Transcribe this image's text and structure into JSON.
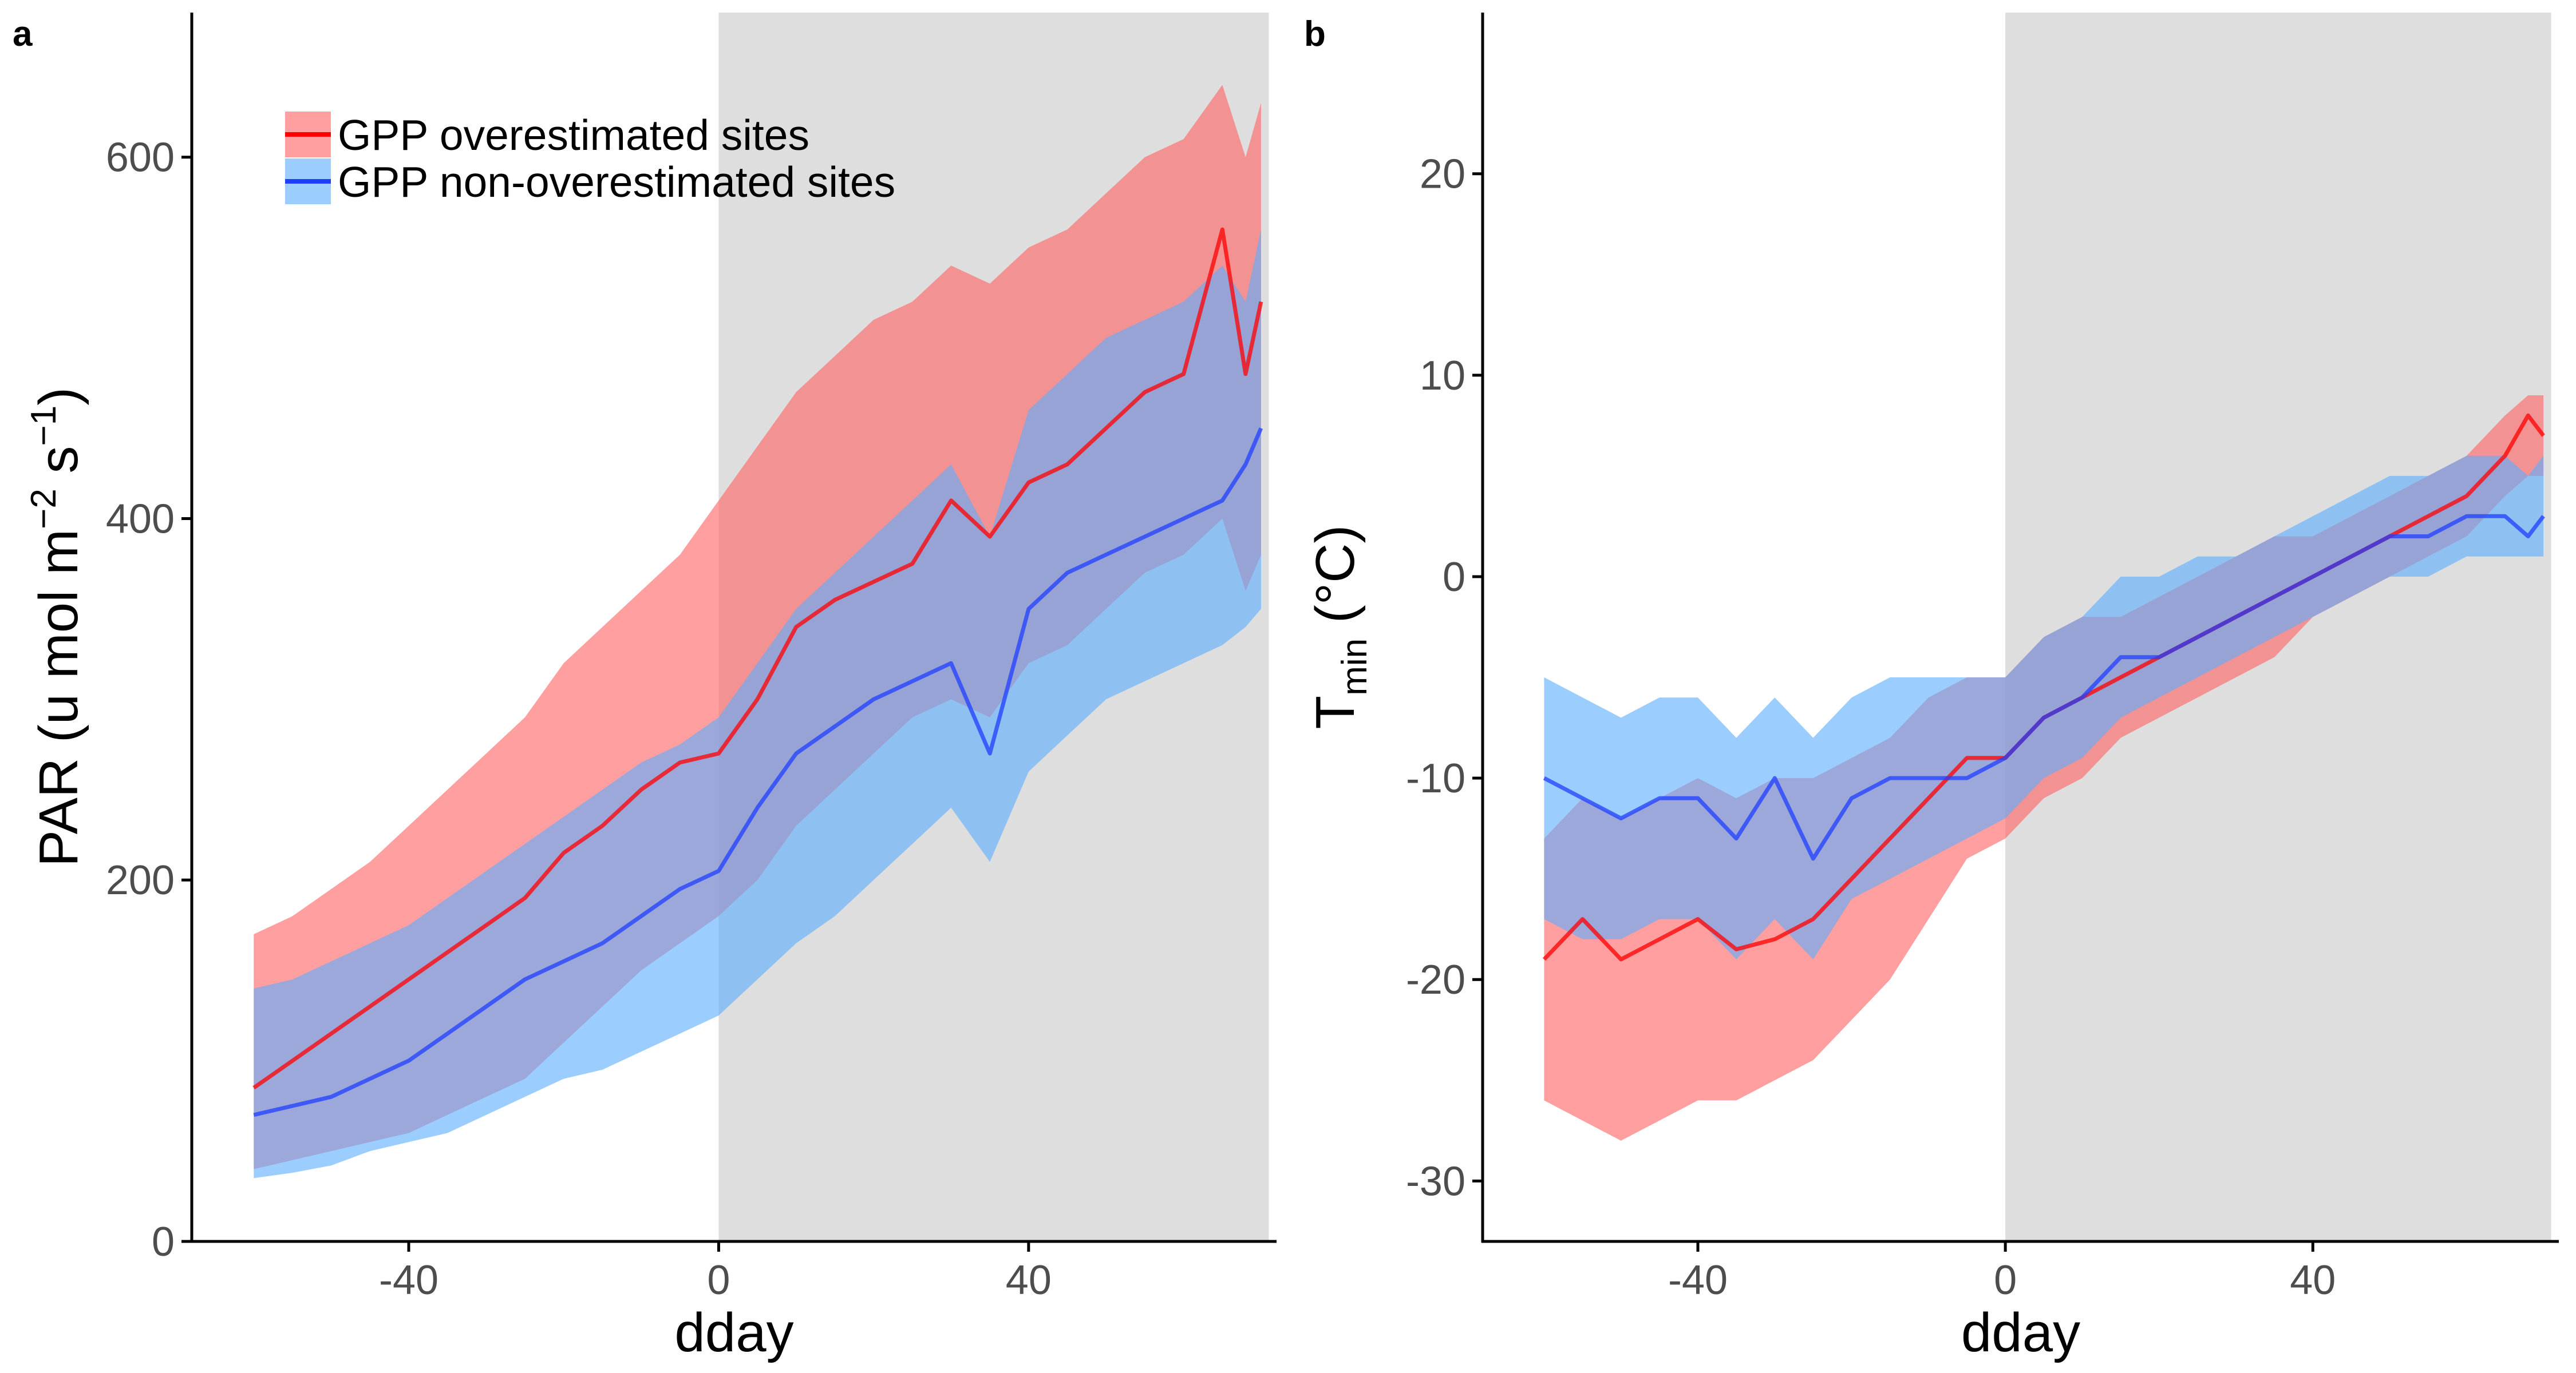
{
  "colors": {
    "over_line": "#ff0000",
    "over_band": "#ff6464",
    "non_line": "#1f3fff",
    "non_band": "#5fafff",
    "shade": "#dedede",
    "axis": "#000000",
    "tick_text": "#4d4d4d"
  },
  "legend": {
    "position": "top-left",
    "items": [
      {
        "key": "over",
        "label": "GPP overestimated sites"
      },
      {
        "key": "non",
        "label": "GPP non-overestimated sites"
      }
    ]
  },
  "chart_data": [
    {
      "panel_letter": "a",
      "type": "line",
      "xlabel": "dday",
      "ylabel": "PAR (u mol m−2 s−1)",
      "ylabel_parts": {
        "main": "PAR (u mol m",
        "sup1": "−2",
        "mid": " s",
        "sup2": "−1",
        "end": ")"
      },
      "xlim": [
        -68,
        72
      ],
      "ylim": [
        0,
        680
      ],
      "xticks": [
        -40,
        0,
        40
      ],
      "xtick_labels": [
        "-40",
        "0",
        "40"
      ],
      "yticks": [
        0,
        200,
        400,
        600
      ],
      "ytick_labels": [
        "0",
        "200",
        "400",
        "600"
      ],
      "shaded_x_range": [
        0,
        71
      ],
      "grid": false,
      "series": [
        {
          "name": "GPP overestimated sites",
          "key": "over",
          "x": [
            -60,
            -55,
            -50,
            -45,
            -40,
            -35,
            -30,
            -25,
            -20,
            -15,
            -10,
            -5,
            0,
            5,
            10,
            15,
            20,
            25,
            30,
            35,
            40,
            45,
            50,
            55,
            60,
            65,
            68,
            70
          ],
          "y": [
            85,
            100,
            115,
            130,
            145,
            160,
            175,
            190,
            215,
            230,
            250,
            265,
            270,
            300,
            340,
            355,
            365,
            375,
            410,
            390,
            420,
            430,
            450,
            470,
            480,
            560,
            480,
            520
          ],
          "y_low": [
            40,
            45,
            50,
            55,
            60,
            70,
            80,
            90,
            110,
            130,
            150,
            165,
            180,
            200,
            230,
            250,
            270,
            290,
            300,
            290,
            320,
            330,
            350,
            370,
            380,
            400,
            360,
            380
          ],
          "y_high": [
            170,
            180,
            195,
            210,
            230,
            250,
            270,
            290,
            320,
            340,
            360,
            380,
            410,
            440,
            470,
            490,
            510,
            520,
            540,
            530,
            550,
            560,
            580,
            600,
            610,
            640,
            600,
            630
          ]
        },
        {
          "name": "GPP non-overestimated sites",
          "key": "non",
          "x": [
            -60,
            -55,
            -50,
            -45,
            -40,
            -35,
            -30,
            -25,
            -20,
            -15,
            -10,
            -5,
            0,
            5,
            10,
            15,
            20,
            25,
            30,
            35,
            40,
            45,
            50,
            55,
            60,
            65,
            68,
            70
          ],
          "y": [
            70,
            75,
            80,
            90,
            100,
            115,
            130,
            145,
            155,
            165,
            180,
            195,
            205,
            240,
            270,
            285,
            300,
            310,
            320,
            270,
            350,
            370,
            380,
            390,
            400,
            410,
            430,
            450
          ],
          "y_low": [
            35,
            38,
            42,
            50,
            55,
            60,
            70,
            80,
            90,
            95,
            105,
            115,
            125,
            145,
            165,
            180,
            200,
            220,
            240,
            210,
            260,
            280,
            300,
            310,
            320,
            330,
            340,
            350
          ],
          "y_high": [
            140,
            145,
            155,
            165,
            175,
            190,
            205,
            220,
            235,
            250,
            265,
            275,
            290,
            320,
            350,
            370,
            390,
            410,
            430,
            390,
            460,
            480,
            500,
            510,
            520,
            540,
            520,
            560
          ]
        }
      ]
    },
    {
      "panel_letter": "b",
      "type": "line",
      "xlabel": "dday",
      "ylabel": "Tmin (°C)",
      "ylabel_parts": {
        "main": "T",
        "sub": "min",
        "end": " (°C)"
      },
      "xlim": [
        -68,
        72
      ],
      "ylim": [
        -33,
        28
      ],
      "xticks": [
        -40,
        0,
        40
      ],
      "xtick_labels": [
        "-40",
        "0",
        "40"
      ],
      "yticks": [
        -30,
        -20,
        -10,
        0,
        10,
        20
      ],
      "ytick_labels": [
        "-30",
        "-20",
        "-10",
        "0",
        "10",
        "20"
      ],
      "shaded_x_range": [
        0,
        71
      ],
      "grid": false,
      "series": [
        {
          "name": "GPP overestimated sites",
          "key": "over",
          "x": [
            -60,
            -55,
            -50,
            -45,
            -40,
            -35,
            -30,
            -25,
            -20,
            -15,
            -10,
            -5,
            0,
            5,
            10,
            15,
            20,
            25,
            30,
            35,
            40,
            45,
            50,
            55,
            60,
            65,
            68,
            70
          ],
          "y": [
            -19,
            -17,
            -19,
            -18,
            -17,
            -18.5,
            -18,
            -17,
            -15,
            -13,
            -11,
            -9,
            -9,
            -7,
            -6,
            -5,
            -4,
            -3,
            -2,
            -1,
            0,
            1,
            2,
            3,
            4,
            6,
            8,
            7
          ],
          "y_low": [
            -26,
            -27,
            -28,
            -27,
            -26,
            -26,
            -25,
            -24,
            -22,
            -20,
            -17,
            -14,
            -13,
            -11,
            -10,
            -8,
            -7,
            -6,
            -5,
            -4,
            -2,
            -1,
            0,
            1,
            2,
            4,
            5,
            5
          ],
          "y_high": [
            -13,
            -11,
            -12,
            -11,
            -10,
            -11,
            -10,
            -10,
            -9,
            -8,
            -6,
            -5,
            -5,
            -3,
            -2,
            -2,
            -1,
            0,
            1,
            2,
            2,
            3,
            4,
            5,
            6,
            8,
            9,
            9
          ]
        },
        {
          "name": "GPP non-overestimated sites",
          "key": "non",
          "x": [
            -60,
            -55,
            -50,
            -45,
            -40,
            -35,
            -30,
            -25,
            -20,
            -15,
            -10,
            -5,
            0,
            5,
            10,
            15,
            20,
            25,
            30,
            35,
            40,
            45,
            50,
            55,
            60,
            65,
            68,
            70
          ],
          "y": [
            -10,
            -11,
            -12,
            -11,
            -11,
            -13,
            -10,
            -14,
            -11,
            -10,
            -10,
            -10,
            -9,
            -7,
            -6,
            -4,
            -4,
            -3,
            -2,
            -1,
            0,
            1,
            2,
            2,
            3,
            3,
            2,
            3
          ],
          "y_low": [
            -17,
            -18,
            -18,
            -17,
            -17,
            -19,
            -17,
            -19,
            -16,
            -15,
            -14,
            -13,
            -12,
            -10,
            -9,
            -7,
            -6,
            -5,
            -4,
            -3,
            -2,
            -1,
            0,
            0,
            1,
            1,
            1,
            1
          ],
          "y_high": [
            -5,
            -6,
            -7,
            -6,
            -6,
            -8,
            -6,
            -8,
            -6,
            -5,
            -5,
            -5,
            -5,
            -3,
            -2,
            0,
            0,
            1,
            1,
            2,
            3,
            4,
            5,
            5,
            6,
            6,
            5,
            6
          ]
        }
      ]
    }
  ]
}
